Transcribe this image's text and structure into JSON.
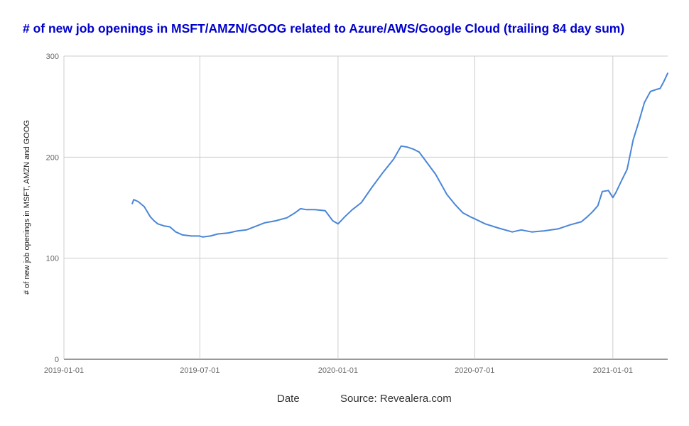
{
  "chart_data": {
    "type": "line",
    "title": "# of new job openings in MSFT/AMZN/GOOG related to Azure/AWS/Google Cloud (trailing 84 day sum)",
    "ylabel": "# of new job openings in MSFT, AMZN and GOOG",
    "xlabel": "Date",
    "source": "Source: Revealera.com",
    "xlim": [
      "2019-01-01",
      "2021-03-15"
    ],
    "ylim": [
      0,
      300
    ],
    "x_ticks": [
      "2019-01-01",
      "2019-07-01",
      "2020-01-01",
      "2020-07-01",
      "2021-01-01"
    ],
    "y_ticks": [
      0,
      100,
      200,
      300
    ],
    "grid": true,
    "line_color": "#4a86d8",
    "series": [
      {
        "x": [
          "2019-04-02",
          "2019-04-04",
          "2019-04-10",
          "2019-04-18",
          "2019-04-26",
          "2019-05-01",
          "2019-05-06",
          "2019-05-14",
          "2019-05-22",
          "2019-05-30",
          "2019-06-08",
          "2019-06-20",
          "2019-06-30",
          "2019-07-05",
          "2019-07-15",
          "2019-07-25",
          "2019-08-08",
          "2019-08-20",
          "2019-09-01",
          "2019-09-15",
          "2019-09-25",
          "2019-10-10",
          "2019-10-25",
          "2019-11-05",
          "2019-11-12",
          "2019-11-20",
          "2019-12-01",
          "2019-12-15",
          "2019-12-25",
          "2020-01-01",
          "2020-01-05",
          "2020-01-10",
          "2020-01-20",
          "2020-02-01",
          "2020-02-15",
          "2020-03-01",
          "2020-03-15",
          "2020-03-25",
          "2020-04-02",
          "2020-04-10",
          "2020-04-18",
          "2020-04-27",
          "2020-05-10",
          "2020-05-25",
          "2020-06-05",
          "2020-06-15",
          "2020-06-25",
          "2020-07-01",
          "2020-07-15",
          "2020-08-01",
          "2020-08-20",
          "2020-09-01",
          "2020-09-15",
          "2020-10-01",
          "2020-10-20",
          "2020-11-05",
          "2020-11-20",
          "2020-11-28",
          "2020-12-05",
          "2020-12-12",
          "2020-12-18",
          "2020-12-26",
          "2021-01-01",
          "2021-01-05",
          "2021-01-12",
          "2021-01-20",
          "2021-01-28",
          "2021-02-05",
          "2021-02-12",
          "2021-02-20",
          "2021-02-28",
          "2021-03-05",
          "2021-03-10",
          "2021-03-15"
        ],
        "y": [
          154,
          158,
          156,
          151,
          141,
          137,
          134,
          132,
          131,
          126,
          123,
          122,
          122,
          121,
          122,
          124,
          125,
          127,
          128,
          132,
          135,
          137,
          140,
          145,
          149,
          148,
          148,
          147,
          137,
          134,
          137,
          141,
          148,
          155,
          170,
          185,
          198,
          211,
          210,
          208,
          205,
          196,
          183,
          163,
          153,
          145,
          141,
          139,
          134,
          130,
          126,
          128,
          126,
          127,
          129,
          133,
          136,
          141,
          146,
          152,
          166,
          167,
          160,
          165,
          176,
          188,
          217,
          236,
          254,
          265,
          267,
          268,
          275,
          283
        ]
      }
    ]
  }
}
